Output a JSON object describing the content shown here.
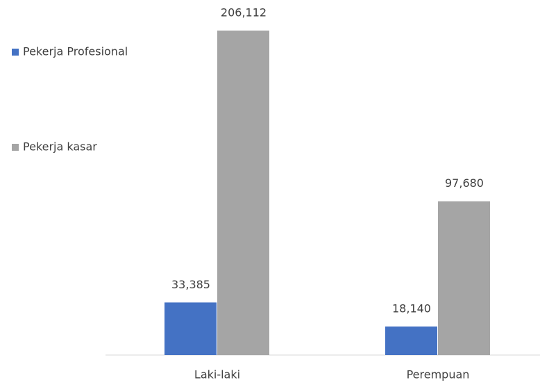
{
  "chart_data": {
    "type": "bar",
    "categories": [
      "Laki-laki",
      "Perempuan"
    ],
    "series": [
      {
        "name": "Pekerja Profesional",
        "color": "#4472c4",
        "values": [
          33385,
          18140
        ],
        "value_labels": [
          "33,385",
          "18,140"
        ]
      },
      {
        "name": "Pekerja kasar",
        "color": "#a5a5a5",
        "values": [
          206112,
          97680
        ],
        "value_labels": [
          "206,112",
          "97,680"
        ]
      }
    ],
    "legend": "left"
  }
}
